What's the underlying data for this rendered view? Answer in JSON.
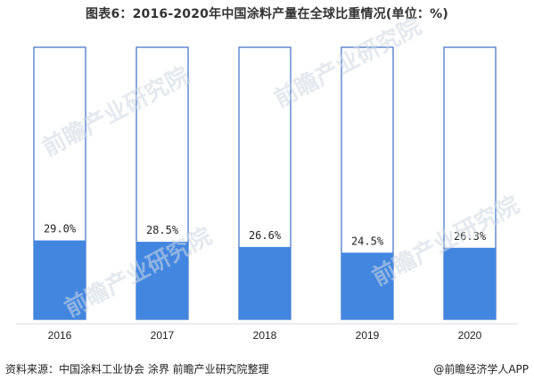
{
  "title": "图表6：2016-2020年中国涂料产量在全球比重情况(单位：%)",
  "footer": {
    "source": "资料来源：中国涂料工业协会 涂界 前瞻产业研究院整理",
    "brand": "@前瞻经济学人APP"
  },
  "watermark": {
    "text": "前瞻产业研究院"
  },
  "colors": {
    "fill": "#4286e0",
    "outline": "#3a6fc6",
    "background": "#ffffff"
  },
  "chart_data": {
    "type": "bar",
    "stacked_to": 100,
    "categories": [
      "2016",
      "2017",
      "2018",
      "2019",
      "2020"
    ],
    "values": [
      29.0,
      28.5,
      26.6,
      24.5,
      26.3
    ],
    "value_labels": [
      "29.0%",
      "28.5%",
      "26.6%",
      "24.5%",
      "26.3%"
    ],
    "ylim": [
      0,
      100
    ],
    "grid": false,
    "legend": "none"
  }
}
